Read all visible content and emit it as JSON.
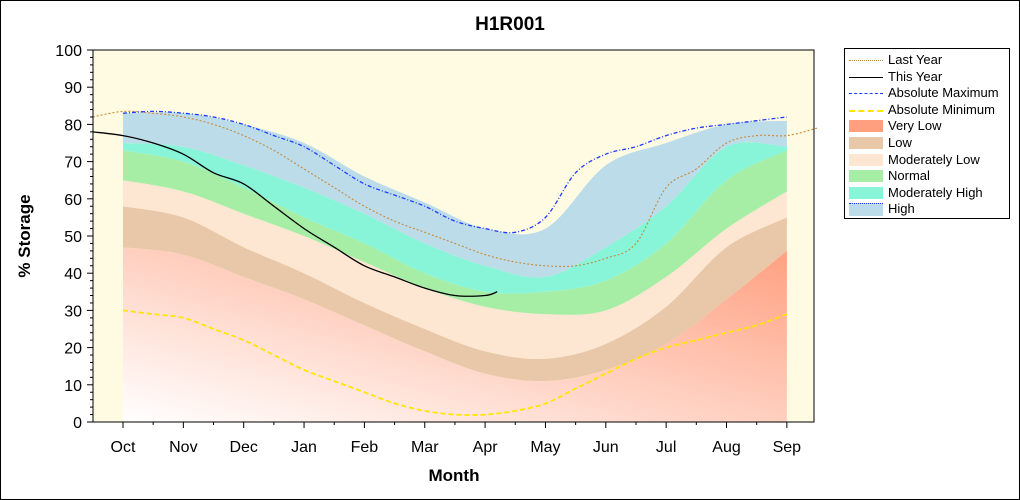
{
  "chart_data": {
    "type": "area",
    "title": "H1R001",
    "xlabel": "Month",
    "ylabel": "% Storage",
    "ylim": [
      0,
      100
    ],
    "yticks": [
      0,
      10,
      20,
      30,
      40,
      50,
      60,
      70,
      80,
      90,
      100
    ],
    "xticks": [
      "Oct",
      "Nov",
      "Dec",
      "Jan",
      "Feb",
      "Mar",
      "Apr",
      "May",
      "Jun",
      "Jul",
      "Aug",
      "Sep"
    ],
    "legend_position": "right",
    "bands": [
      {
        "name": "Very Low",
        "color": "#ff9f7f",
        "lower": [
          0,
          0,
          0,
          0,
          0,
          0,
          0,
          0,
          0,
          0,
          0,
          0
        ],
        "upper": [
          47,
          45,
          39,
          33,
          26,
          19,
          13,
          11,
          14,
          21,
          33,
          46
        ]
      },
      {
        "name": "Low",
        "color": "#e8c8a8",
        "lower": [
          47,
          45,
          39,
          33,
          26,
          19,
          13,
          11,
          14,
          21,
          33,
          46
        ],
        "upper": [
          58,
          55,
          47,
          40,
          32,
          25,
          19,
          17,
          21,
          31,
          47,
          55
        ]
      },
      {
        "name": "Moderately Low",
        "color": "#fde6d2",
        "lower": [
          58,
          55,
          47,
          40,
          32,
          25,
          19,
          17,
          21,
          31,
          47,
          55
        ],
        "upper": [
          65,
          62,
          56,
          50,
          43,
          36,
          31,
          29,
          30,
          39,
          52,
          62
        ]
      },
      {
        "name": "Normal",
        "color": "#a6eea6",
        "lower": [
          65,
          62,
          56,
          50,
          43,
          36,
          31,
          29,
          30,
          39,
          52,
          62
        ],
        "upper": [
          73,
          70,
          63,
          55,
          48,
          40,
          35,
          35,
          38,
          48,
          65,
          73
        ]
      },
      {
        "name": "Moderately High",
        "color": "#88f5d8",
        "lower": [
          73,
          70,
          63,
          55,
          48,
          40,
          35,
          35,
          38,
          48,
          65,
          73
        ],
        "upper": [
          75,
          74,
          69,
          63,
          56,
          48,
          42,
          39,
          47,
          58,
          74,
          74
        ]
      },
      {
        "name": "High",
        "color": "#bcdcea",
        "lower": [
          75,
          74,
          69,
          63,
          56,
          48,
          42,
          39,
          47,
          58,
          74,
          74
        ],
        "upper": [
          83,
          83,
          80,
          75,
          66,
          59,
          52,
          52,
          69,
          75,
          80,
          81
        ]
      }
    ],
    "series": [
      {
        "name": "Last Year",
        "color": "#c88a3c",
        "style": "dotted",
        "x": [
          -0.5,
          0,
          0.5,
          1,
          1.5,
          2,
          2.5,
          3,
          3.5,
          4,
          4.5,
          5,
          5.5,
          6,
          6.5,
          7,
          7.5,
          8,
          8.5,
          9,
          9.5,
          10,
          10.5,
          11,
          11.5
        ],
        "y": [
          82,
          83.5,
          83,
          82,
          80,
          77,
          73,
          68,
          63,
          58,
          54,
          51,
          48,
          45,
          43,
          42,
          42,
          44,
          48,
          63,
          68,
          75,
          77,
          77,
          79
        ]
      },
      {
        "name": "This Year",
        "color": "#000000",
        "style": "solid",
        "x": [
          -0.5,
          0,
          0.5,
          1,
          1.5,
          2,
          2.5,
          3,
          3.5,
          4,
          4.5,
          5,
          5.5,
          6,
          6.2
        ],
        "y": [
          78,
          77,
          75,
          72,
          67,
          64,
          58,
          52,
          47,
          42,
          39,
          36,
          34,
          34,
          35
        ]
      },
      {
        "name": "Absolute Maximum",
        "color": "#1e3cff",
        "style": "dashdot",
        "x": [
          0,
          0.5,
          1,
          1.5,
          2,
          2.5,
          3,
          3.5,
          4,
          4.5,
          5,
          5.5,
          6,
          6.5,
          7,
          7.5,
          8,
          8.5,
          9,
          9.5,
          10,
          10.5,
          11
        ],
        "y": [
          83,
          83.5,
          83,
          82,
          80,
          77,
          74,
          69,
          64,
          61,
          58,
          54,
          52,
          51,
          55,
          67,
          72,
          74,
          77,
          79,
          80,
          81,
          82
        ]
      },
      {
        "name": "Absolute Minimum",
        "color": "#ffe600",
        "style": "dashed",
        "x": [
          0,
          0.5,
          1,
          1.5,
          2,
          2.5,
          3,
          3.5,
          4,
          4.5,
          5,
          5.5,
          6,
          6.5,
          7,
          7.5,
          8,
          8.5,
          9,
          9.5,
          10,
          10.5,
          11
        ],
        "y": [
          30,
          29,
          28,
          25,
          22,
          18,
          14,
          11,
          8,
          5,
          3,
          2,
          2,
          3,
          5,
          9,
          13,
          17,
          20,
          22,
          24,
          26,
          29
        ]
      }
    ]
  }
}
